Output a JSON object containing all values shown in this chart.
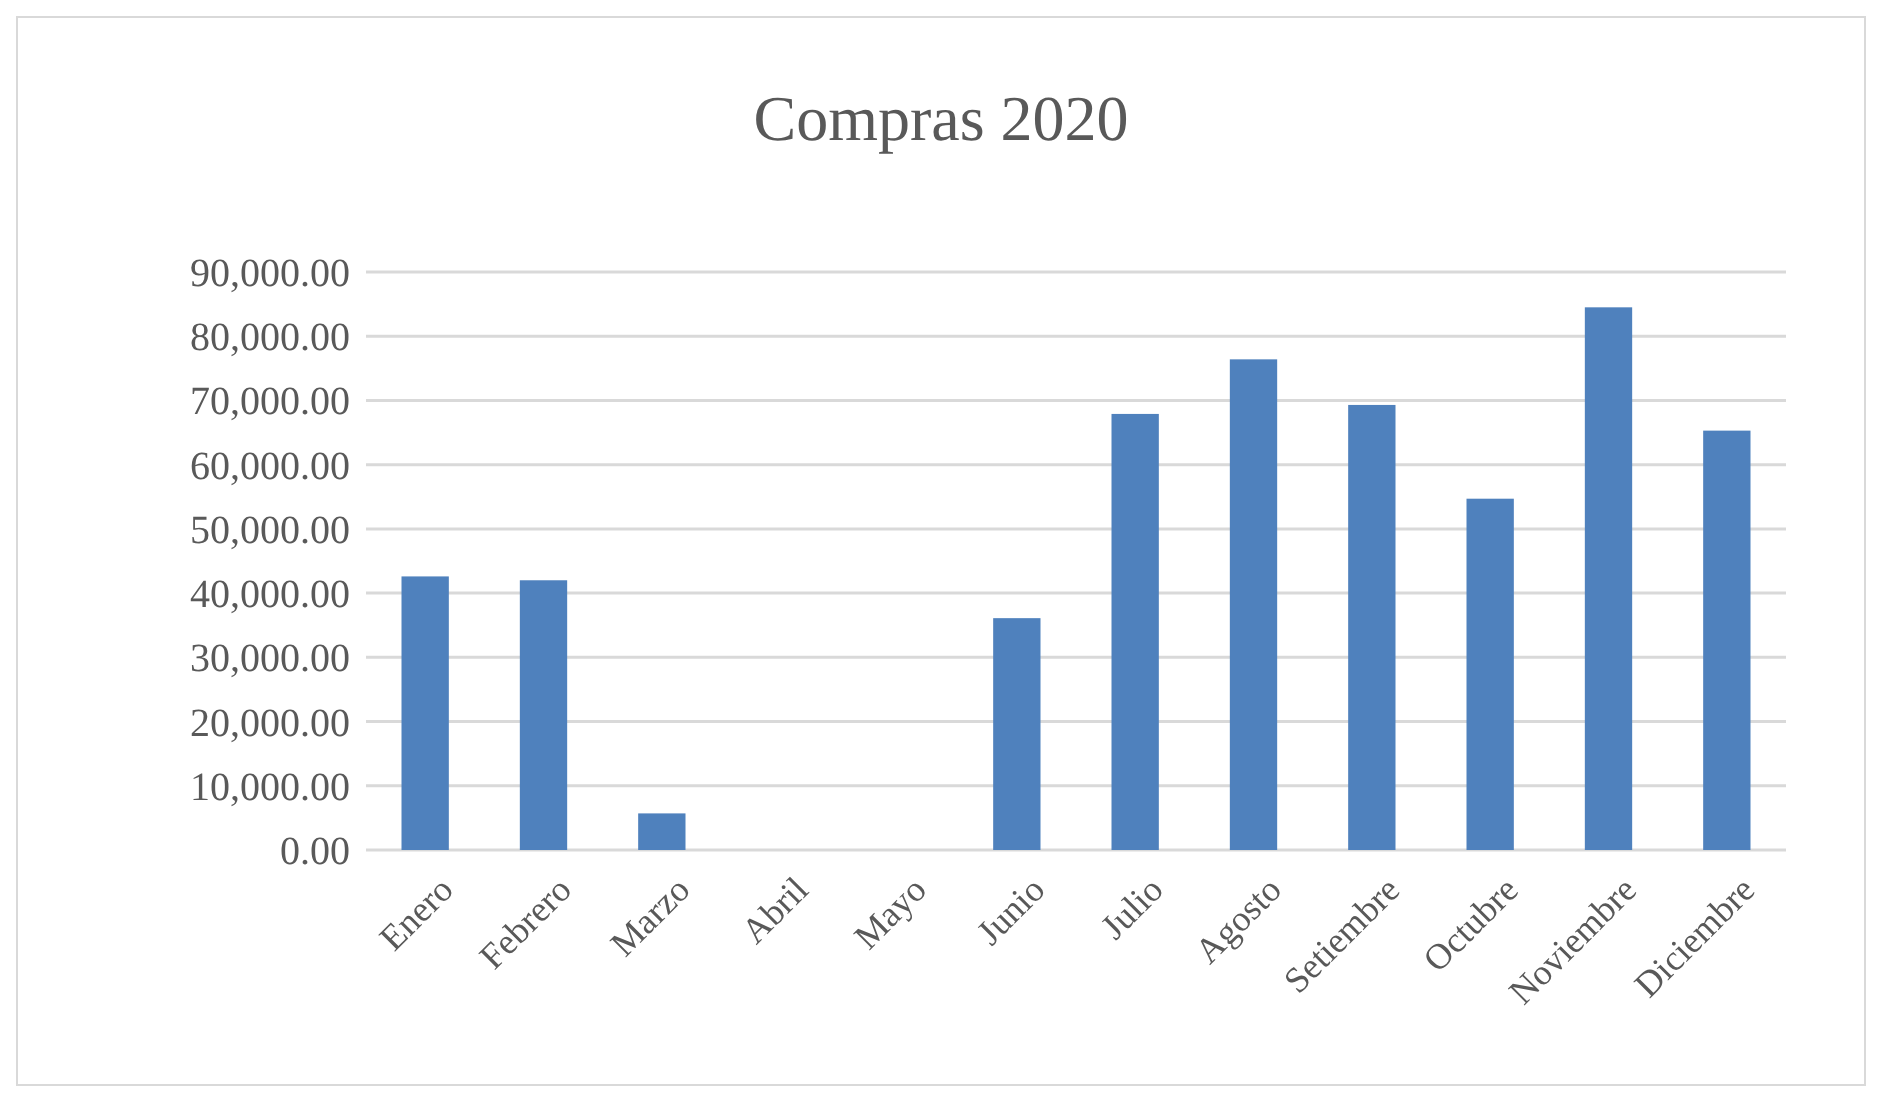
{
  "chart_data": {
    "type": "bar",
    "title": "Compras 2020",
    "categories": [
      "Enero",
      "Febrero",
      "Marzo",
      "Abril",
      "Mayo",
      "Junio",
      "Julio",
      "Agosto",
      "Setiembre",
      "Octubre",
      "Noviembre",
      "Diciembre"
    ],
    "values": [
      42600,
      42000,
      5700,
      0,
      0,
      36100,
      67900,
      76400,
      69300,
      54700,
      84500,
      65300
    ],
    "color": "#4f81bd",
    "ylim": [
      0,
      90000
    ],
    "yticks": [
      {
        "value": 0,
        "label": "0.00"
      },
      {
        "value": 10000,
        "label": "10,000.00"
      },
      {
        "value": 20000,
        "label": "20,000.00"
      },
      {
        "value": 30000,
        "label": "30,000.00"
      },
      {
        "value": 40000,
        "label": "40,000.00"
      },
      {
        "value": 50000,
        "label": "50,000.00"
      },
      {
        "value": 60000,
        "label": "60,000.00"
      },
      {
        "value": 70000,
        "label": "70,000.00"
      },
      {
        "value": 80000,
        "label": "80,000.00"
      },
      {
        "value": 90000,
        "label": "90,000.00"
      }
    ],
    "grid": true
  }
}
